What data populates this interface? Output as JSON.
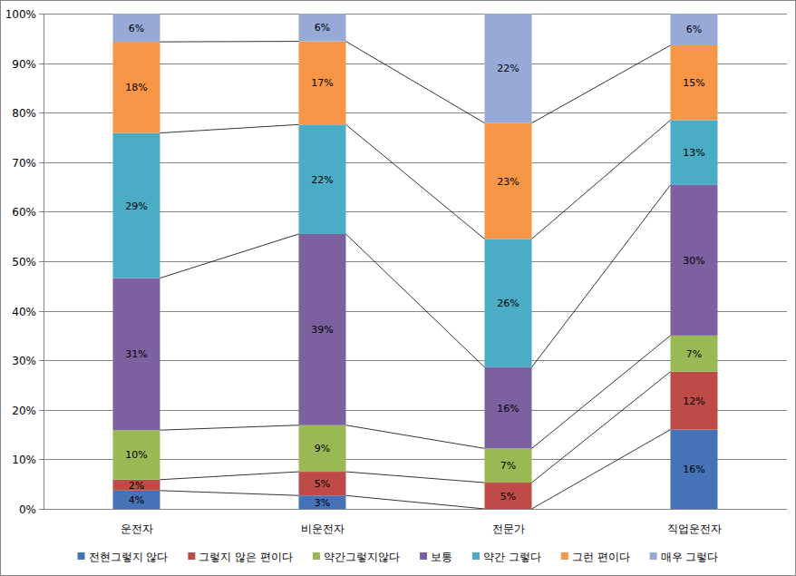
{
  "chart_data": {
    "type": "bar",
    "stacked": true,
    "data_labels": true,
    "grid": true,
    "legend": "bottom",
    "categories": [
      "운전자",
      "비운전자",
      "전문가",
      "직업운전자"
    ],
    "ylim": [
      0,
      100
    ],
    "yticks": [
      {
        "value": 0,
        "label": "0%"
      },
      {
        "value": 10,
        "label": "10%"
      },
      {
        "value": 20,
        "label": "20%"
      },
      {
        "value": 30,
        "label": "30%"
      },
      {
        "value": 40,
        "label": "40%"
      },
      {
        "value": 50,
        "label": "50%"
      },
      {
        "value": 60,
        "label": "60%"
      },
      {
        "value": 70,
        "label": "70%"
      },
      {
        "value": 80,
        "label": "80%"
      },
      {
        "value": 90,
        "label": "90%"
      },
      {
        "value": 100,
        "label": "100%"
      }
    ],
    "series": [
      {
        "name": "전현그렇지 않다",
        "color": "#4672b8",
        "values": [
          3.7,
          2.7,
          0,
          16.0
        ],
        "value_labels": [
          "4%",
          "3%",
          null,
          "16%"
        ]
      },
      {
        "name": "그렇지 않은 편이다",
        "color": "#be4b48",
        "values": [
          2.2,
          4.8,
          5.3,
          11.7
        ],
        "value_labels": [
          "2%",
          "5%",
          "5%",
          "12%"
        ]
      },
      {
        "name": "약간그렇지않다",
        "color": "#98b954",
        "values": [
          10.0,
          9.4,
          6.9,
          7.3
        ],
        "value_labels": [
          "10%",
          "9%",
          "7%",
          "7%"
        ]
      },
      {
        "name": "보통",
        "color": "#7d60a0",
        "values": [
          30.7,
          38.6,
          16.4,
          30.4
        ],
        "value_labels": [
          "31%",
          "39%",
          "16%",
          "30%"
        ]
      },
      {
        "name": "약간 그렇다",
        "color": "#4bacc6",
        "values": [
          29.3,
          22.1,
          25.9,
          13.1
        ],
        "value_labels": [
          "29%",
          "22%",
          "26%",
          "13%"
        ]
      },
      {
        "name": "그런 편이다",
        "color": "#f79646",
        "values": [
          18.4,
          16.8,
          23.4,
          15.1
        ],
        "value_labels": [
          "18%",
          "17%",
          "23%",
          "15%"
        ]
      },
      {
        "name": "매우 그렇다",
        "color": "#97aad7",
        "values": [
          5.7,
          5.6,
          22.1,
          6.4
        ],
        "value_labels": [
          "6%",
          "6%",
          "22%",
          "6%"
        ]
      }
    ]
  }
}
